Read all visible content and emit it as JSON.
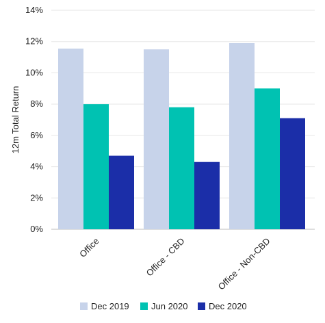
{
  "chart_data": {
    "type": "bar",
    "title": "",
    "xlabel": "",
    "ylabel": "12m Total Return",
    "categories": [
      "Office",
      "Office - CBD",
      "Office - Non-CBD"
    ],
    "series": [
      {
        "name": "Dec 2019",
        "color": "#c7d3ea",
        "values": [
          11.55,
          11.5,
          11.9
        ]
      },
      {
        "name": "Jun 2020",
        "color": "#00c2b2",
        "values": [
          8.0,
          7.8,
          9.0
        ]
      },
      {
        "name": "Dec 2020",
        "color": "#1b2ea8",
        "values": [
          4.7,
          4.3,
          7.1
        ]
      }
    ],
    "ylim": [
      0,
      14
    ],
    "yticks": [
      0,
      2,
      4,
      6,
      8,
      10,
      12,
      14
    ],
    "ytick_suffix": "%",
    "grid": true,
    "legend_position": "bottom"
  }
}
